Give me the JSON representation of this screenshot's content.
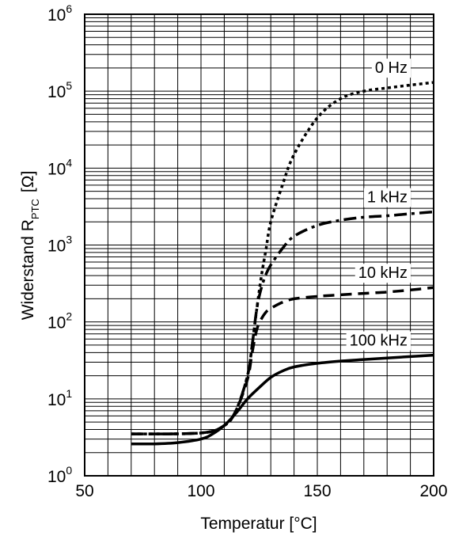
{
  "chart_data": {
    "type": "line",
    "xlabel": "Temperatur [°C]",
    "ylabel": {
      "main": "Widerstand R",
      "sub": "PTC",
      "unit": "[Ω]"
    },
    "xlim": [
      50,
      200
    ],
    "ylim": [
      1,
      1000000
    ],
    "y_scale": "log",
    "grid": true,
    "legend": "inline labels at right end of each curve",
    "x_ticks": [
      "50",
      "100",
      "150",
      "200"
    ],
    "y_ticks": [
      {
        "base": "10",
        "exp": "0"
      },
      {
        "base": "10",
        "exp": "1"
      },
      {
        "base": "10",
        "exp": "2"
      },
      {
        "base": "10",
        "exp": "3"
      },
      {
        "base": "10",
        "exp": "4"
      },
      {
        "base": "10",
        "exp": "5"
      },
      {
        "base": "10",
        "exp": "6"
      }
    ],
    "series": [
      {
        "name": "0 Hz",
        "style": "dotted",
        "x": [
          70,
          100,
          110,
          115,
          120,
          122,
          124,
          126,
          128,
          130,
          135,
          140,
          150,
          160,
          170,
          180,
          190,
          200
        ],
        "y": [
          3.5,
          3.6,
          4.5,
          7,
          20,
          50,
          150,
          400,
          900,
          2000,
          6000,
          15000,
          45000,
          80000,
          100000,
          110000,
          120000,
          130000
        ]
      },
      {
        "name": "1 kHz",
        "style": "dash-dot",
        "x": [
          70,
          100,
          110,
          115,
          120,
          122,
          124,
          126,
          128,
          130,
          135,
          140,
          150,
          160,
          170,
          180,
          190,
          200
        ],
        "y": [
          3.5,
          3.6,
          4.5,
          7,
          20,
          50,
          150,
          280,
          420,
          550,
          900,
          1300,
          1800,
          2100,
          2300,
          2400,
          2550,
          2700
        ]
      },
      {
        "name": "10 kHz",
        "style": "dashed",
        "x": [
          70,
          100,
          110,
          115,
          120,
          122,
          124,
          126,
          128,
          130,
          135,
          140,
          150,
          160,
          170,
          180,
          190,
          200
        ],
        "y": [
          3.5,
          3.6,
          4.5,
          7,
          18,
          40,
          80,
          110,
          135,
          150,
          180,
          200,
          215,
          225,
          235,
          245,
          260,
          280
        ]
      },
      {
        "name": "100 kHz",
        "style": "solid",
        "x": [
          70,
          80,
          90,
          100,
          105,
          110,
          115,
          120,
          125,
          130,
          135,
          140,
          150,
          160,
          170,
          180,
          190,
          200
        ],
        "y": [
          2.6,
          2.6,
          2.7,
          3.0,
          3.5,
          4.5,
          6.5,
          10,
          14,
          19,
          23,
          26,
          29,
          31,
          32.5,
          34,
          35.5,
          37
        ]
      }
    ]
  }
}
